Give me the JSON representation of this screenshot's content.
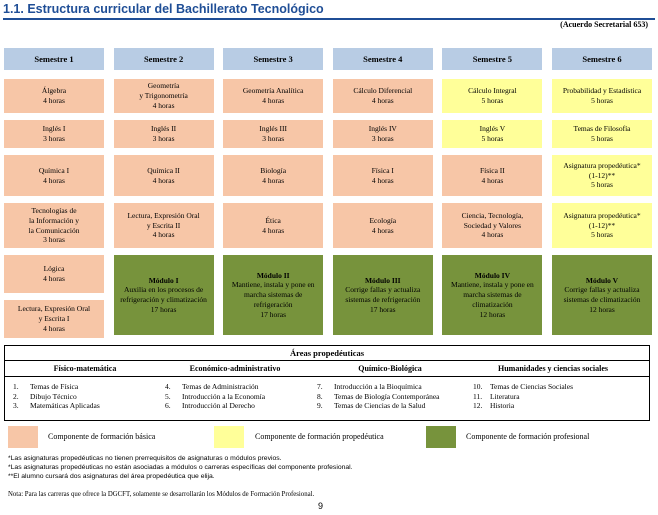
{
  "title": "1.1. Estructura curricular del Bachillerato Tecnológico",
  "agreement": "(Acuerdo Secretarial 653)",
  "semesters": [
    "Semestre 1",
    "Semestre 2",
    "Semestre 3",
    "Semestre 4",
    "Semestre 5",
    "Semestre 6"
  ],
  "columns": [
    [
      {
        "kind": "basic",
        "lines": [
          "Álgebra",
          "4 horas"
        ]
      },
      {
        "kind": "basic",
        "lines": [
          "Inglés I",
          "3 horas"
        ]
      },
      {
        "kind": "basic",
        "lines": [
          "Química I",
          "4 horas"
        ]
      },
      {
        "kind": "basic",
        "lines": [
          "Tecnologías de",
          "la Información y",
          "la Comunicación",
          "3 horas"
        ]
      },
      {
        "kind": "basic",
        "lines": [
          "Lógica",
          "4 horas"
        ]
      },
      {
        "kind": "basic",
        "lines": [
          "Lectura, Expresión Oral",
          "y Escrita I",
          "4 horas"
        ]
      }
    ],
    [
      {
        "kind": "basic",
        "lines": [
          "Geometría",
          "y Trigonometría",
          "4 horas"
        ]
      },
      {
        "kind": "basic",
        "lines": [
          "Inglés II",
          "3 horas"
        ]
      },
      {
        "kind": "basic",
        "lines": [
          "Química II",
          "4 horas"
        ]
      },
      {
        "kind": "basic",
        "lines": [
          "Lectura, Expresión Oral",
          "y Escrita II",
          "4 horas"
        ]
      },
      {
        "kind": "prof",
        "lines": [
          "Módulo I",
          "Auxilia en los procesos de",
          "refrigeración y climatización",
          "17 horas"
        ]
      }
    ],
    [
      {
        "kind": "basic",
        "lines": [
          "Geometría Analítica",
          "4 horas"
        ]
      },
      {
        "kind": "basic",
        "lines": [
          "Inglés III",
          "3 horas"
        ]
      },
      {
        "kind": "basic",
        "lines": [
          "Biología",
          "4 horas"
        ]
      },
      {
        "kind": "basic",
        "lines": [
          "Ética",
          "4 horas"
        ]
      },
      {
        "kind": "prof",
        "lines": [
          "Módulo II",
          "Mantiene, instala y pone en",
          "marcha sistemas de",
          "refrigeración",
          "17 horas"
        ]
      }
    ],
    [
      {
        "kind": "basic",
        "lines": [
          "Cálculo Diferencial",
          "4 horas"
        ]
      },
      {
        "kind": "basic",
        "lines": [
          "Inglés IV",
          "3 horas"
        ]
      },
      {
        "kind": "basic",
        "lines": [
          "Física I",
          "4 horas"
        ]
      },
      {
        "kind": "basic",
        "lines": [
          "Ecología",
          "4 horas"
        ]
      },
      {
        "kind": "prof",
        "lines": [
          "Módulo III",
          "Corrige fallas y actualiza",
          "sistemas de refrigeración",
          "17 horas"
        ]
      }
    ],
    [
      {
        "kind": "prop",
        "lines": [
          "Cálculo Integral",
          "5 horas"
        ]
      },
      {
        "kind": "prop",
        "lines": [
          "Inglés V",
          "5 horas"
        ]
      },
      {
        "kind": "basic",
        "lines": [
          "Física II",
          "4 horas"
        ]
      },
      {
        "kind": "basic",
        "lines": [
          "Ciencia, Tecnología,",
          "Sociedad y Valores",
          "4 horas"
        ]
      },
      {
        "kind": "prof",
        "lines": [
          "Módulo IV",
          "Mantiene, instala y pone en",
          "marcha sistemas de",
          "climatización",
          "12 horas"
        ]
      }
    ],
    [
      {
        "kind": "prop",
        "lines": [
          "Probabilidad y Estadística",
          "5 horas"
        ]
      },
      {
        "kind": "prop",
        "lines": [
          "Temas de Filosofía",
          "5 horas"
        ]
      },
      {
        "kind": "prop",
        "lines": [
          "Asignatura propedéutica*",
          "(1-12)**",
          "5 horas"
        ]
      },
      {
        "kind": "prop",
        "lines": [
          "Asignatura propedéutica*",
          "(1-12)**",
          "5 horas"
        ]
      },
      {
        "kind": "prof",
        "lines": [
          "Módulo V",
          "Corrige fallas y actualiza",
          "sistemas de climatización",
          "12 horas"
        ]
      }
    ]
  ],
  "areas": {
    "title": "Áreas propedéuticas",
    "groups": [
      {
        "name": "Físico-matemática",
        "items": [
          [
            "1.",
            "Temas de Física"
          ],
          [
            "2.",
            "Dibujo Técnico"
          ],
          [
            "3.",
            "Matemáticas Aplicadas"
          ]
        ]
      },
      {
        "name": "Económico-administrativo",
        "items": [
          [
            "4.",
            "Temas de Administración"
          ],
          [
            "5.",
            "Introducción a la Economía"
          ],
          [
            "6.",
            "Introducción al Derecho"
          ]
        ]
      },
      {
        "name": "Químico-Biológica",
        "items": [
          [
            "7.",
            "Introducción a la Bioquímica"
          ],
          [
            "8.",
            "Temas de Biología Contemporánea"
          ],
          [
            "9.",
            "Temas de Ciencias de la Salud"
          ]
        ]
      },
      {
        "name": "Humanidades y ciencias sociales",
        "items": [
          [
            "10.",
            "Temas de Ciencias Sociales"
          ],
          [
            "11.",
            "Literatura"
          ],
          [
            "12.",
            "Historia"
          ]
        ]
      }
    ]
  },
  "legend": [
    {
      "label": "Componente de formación básica",
      "color": "#f7c6a7"
    },
    {
      "label": "Componente de formación propedéutica",
      "color": "#ffff99"
    },
    {
      "label": "Componente de formación profesional",
      "color": "#77933c"
    }
  ],
  "notes": [
    "*Las asignaturas propedéuticas no tienen prerrequisitos de asignaturas o módulos previos.",
    "*Las asignaturas propedéuticas no están asociadas a módulos o carreras específicas del componente profesional.",
    "**El alumno cursará dos asignaturas del área propedéutica que elija."
  ],
  "final_note": "Nota: Para las carreras que ofrece la DGCFT, solamente se desarrollarán los Módulos de Formación Profesional.",
  "page_number": "9"
}
